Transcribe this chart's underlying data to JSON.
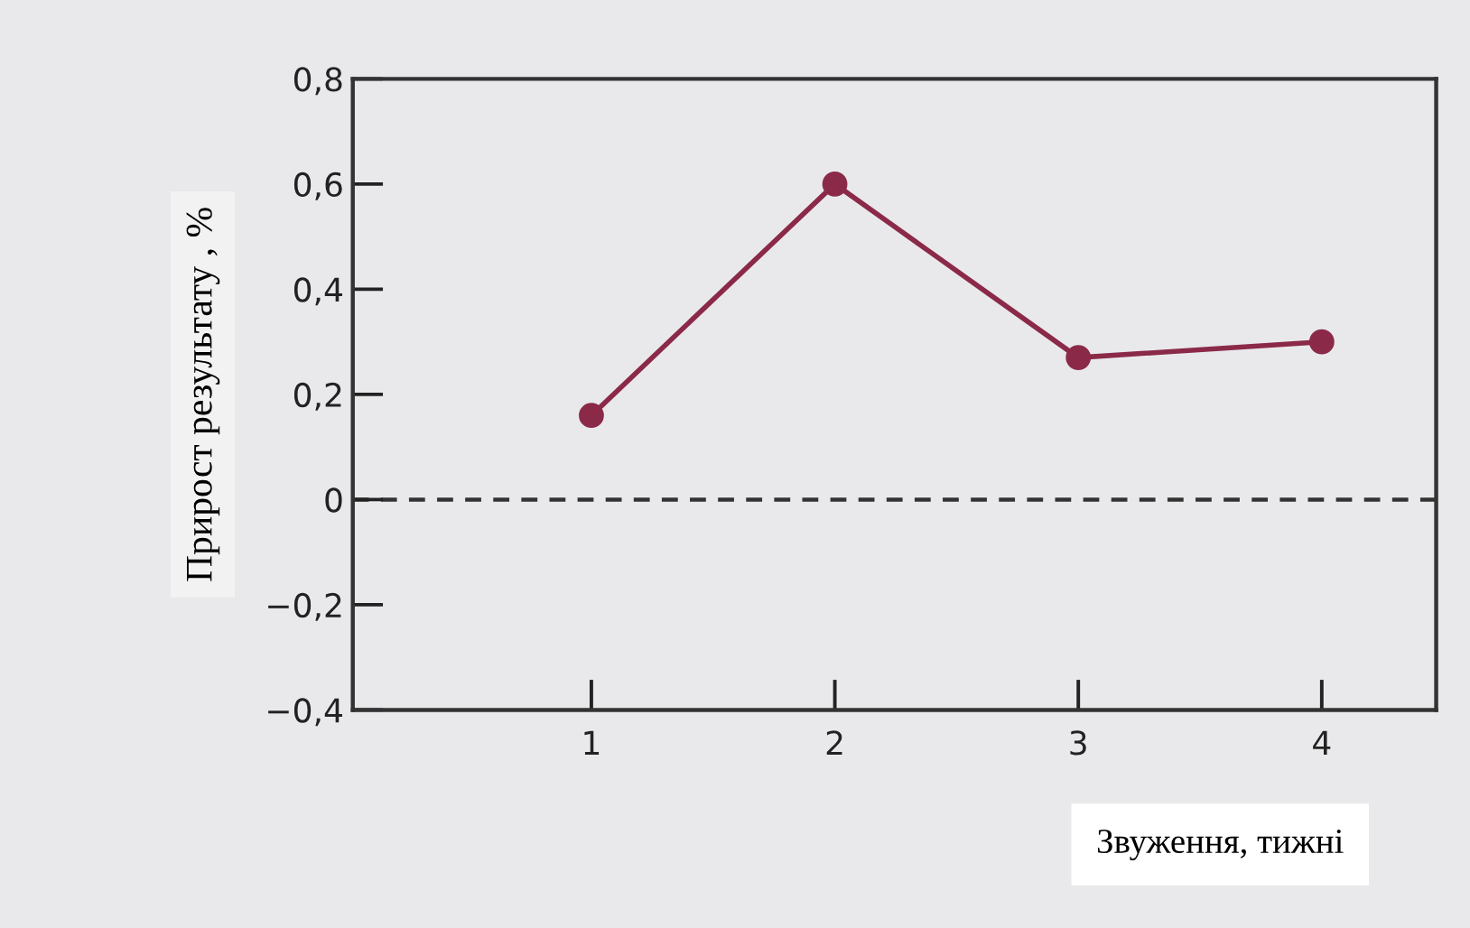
{
  "chart_data": {
    "type": "line",
    "xlabel": "Звуження, тижні",
    "ylabel": "Прирост результату , %",
    "x": [
      1,
      2,
      3,
      4
    ],
    "series": [
      {
        "color": "#8b2a48",
        "values": [
          0.16,
          0.6,
          0.27,
          0.3
        ]
      }
    ],
    "xlim": [
      0.02,
      4.47
    ],
    "xticks": [
      1,
      2,
      3,
      4
    ],
    "ylim": [
      -0.4,
      0.8
    ],
    "yticks": [
      {
        "value": -0.4,
        "label": "−0,4"
      },
      {
        "value": -0.2,
        "label": "−0,2"
      },
      {
        "value": 0,
        "label": "0"
      },
      {
        "value": 0.2,
        "label": "0,2"
      },
      {
        "value": 0.4,
        "label": "0,4"
      },
      {
        "value": 0.6,
        "label": "0,6"
      },
      {
        "value": 0.8,
        "label": "0,8"
      }
    ],
    "ref_lines": [
      {
        "axis": "y",
        "value": 0,
        "color": "#333333",
        "line_style": "dashed"
      }
    ],
    "marker": "circle",
    "grid": false,
    "legend": false
  }
}
